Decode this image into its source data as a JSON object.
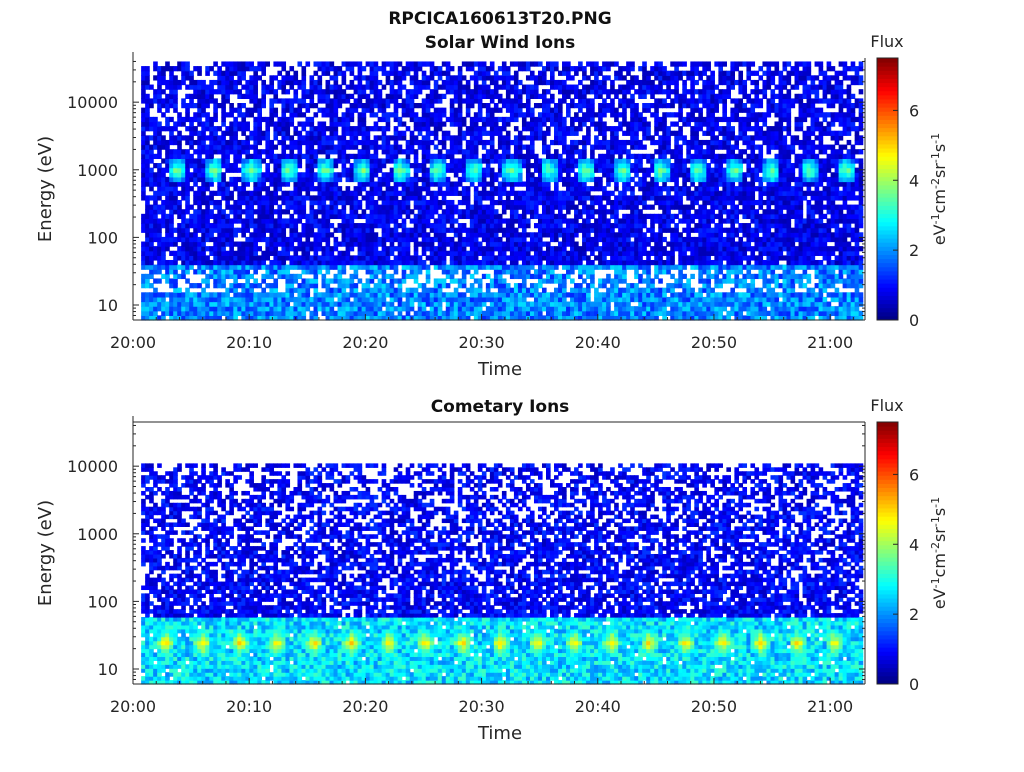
{
  "figure_title": "RPCICA160613T20.PNG",
  "chart_data": [
    {
      "type": "heatmap",
      "title": "Solar Wind Ions",
      "xlabel": "Time",
      "ylabel": "Energy (eV)",
      "x_ticks": [
        "20:00",
        "20:10",
        "20:20",
        "20:30",
        "20:40",
        "20:50",
        "21:00"
      ],
      "x_range_minutes": [
        0,
        63
      ],
      "data_x_range_minutes": [
        0.7,
        62.8
      ],
      "y_scale": "log",
      "y_ticks": [
        "10",
        "100",
        "1000",
        "10000"
      ],
      "y_range_eV": [
        6,
        45000
      ],
      "data_y_range_eV": [
        6,
        40000
      ],
      "colorbar": {
        "label": "Flux",
        "unit": "eV⁻¹cm⁻²sr⁻¹s⁻¹",
        "ticks": [
          "0",
          "2",
          "4",
          "6"
        ],
        "range": [
          0,
          7.5
        ],
        "colormap": "jet"
      },
      "features": [
        {
          "name": "periodic bursts",
          "energy_eV": [
            650,
            1500
          ],
          "flux_peak": 3.8,
          "start_min": 3.8,
          "period_min": 3.2
        },
        {
          "name": "low-energy band",
          "energy_eV": [
            6,
            40
          ],
          "flux_mean": 1.9
        }
      ],
      "background_flux": 0.8,
      "grid": false
    },
    {
      "type": "heatmap",
      "title": "Cometary Ions",
      "xlabel": "Time",
      "ylabel": "Energy (eV)",
      "x_ticks": [
        "20:00",
        "20:10",
        "20:20",
        "20:30",
        "20:40",
        "20:50",
        "21:00"
      ],
      "x_range_minutes": [
        0,
        63
      ],
      "data_x_range_minutes": [
        0.7,
        62.8
      ],
      "y_scale": "log",
      "y_ticks": [
        "10",
        "100",
        "1000",
        "10000"
      ],
      "y_range_eV": [
        6,
        45000
      ],
      "data_y_range_eV": [
        6,
        11000
      ],
      "colorbar": {
        "label": "Flux",
        "unit": "eV⁻¹cm⁻²sr⁻¹s⁻¹",
        "ticks": [
          "0",
          "2",
          "4",
          "6"
        ],
        "range": [
          0,
          7.5
        ],
        "colormap": "jet"
      },
      "features": [
        {
          "name": "periodic bursts",
          "energy_eV": [
            15,
            40
          ],
          "flux_peak": 5.0,
          "start_min": 2.8,
          "period_min": 3.2
        },
        {
          "name": "low-energy band",
          "energy_eV": [
            6,
            60
          ],
          "flux_mean": 2.6
        }
      ],
      "background_flux": 0.9,
      "grid": false
    }
  ]
}
